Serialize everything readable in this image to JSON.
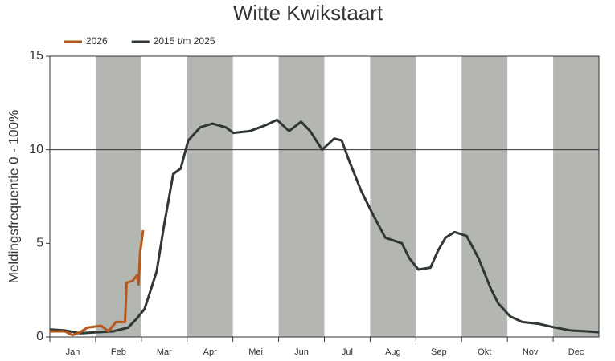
{
  "chart_data": {
    "type": "line",
    "title": "Witte Kwikstaart",
    "y_label": "Meldingsfrequentie 0 - 100%",
    "categories": [
      "Jan",
      "Feb",
      "Mar",
      "Apr",
      "Mei",
      "Jun",
      "Jul",
      "Aug",
      "Sep",
      "Okt",
      "Nov",
      "Dec"
    ],
    "band_color": "#b4b6b1",
    "xlim": [
      0,
      365
    ],
    "ylim": [
      0,
      15
    ],
    "yticks": [
      0,
      5,
      10,
      15
    ],
    "grid_lines_at": [
      10
    ],
    "series": [
      {
        "name": "2026",
        "color": "#b5581c",
        "x": [
          0,
          10,
          15,
          20,
          25,
          34,
          39,
          44,
          50,
          51,
          55,
          58,
          59,
          60,
          62
        ],
        "values": [
          0.3,
          0.3,
          0.1,
          0.25,
          0.5,
          0.6,
          0.3,
          0.8,
          0.8,
          2.9,
          3.0,
          3.3,
          2.8,
          4.5,
          5.7
        ]
      },
      {
        "name": "2015 t/m 2025",
        "color": "#2f3833",
        "x": [
          0,
          10,
          20,
          31,
          42,
          52,
          58,
          63,
          71,
          76,
          82,
          87,
          92,
          100,
          108,
          117,
          122,
          133,
          143,
          151,
          159,
          167,
          173,
          181,
          189,
          194,
          199,
          207,
          215,
          223,
          234,
          239,
          245,
          253,
          258,
          263,
          269,
          277,
          285,
          293,
          298,
          306,
          314,
          325,
          336,
          346,
          357,
          365
        ],
        "values": [
          0.4,
          0.35,
          0.2,
          0.25,
          0.3,
          0.5,
          1.0,
          1.5,
          3.5,
          6.0,
          8.7,
          9.0,
          10.5,
          11.2,
          11.4,
          11.2,
          10.9,
          11.0,
          11.3,
          11.6,
          11.0,
          11.5,
          11.0,
          10.0,
          10.6,
          10.5,
          9.4,
          7.8,
          6.5,
          5.3,
          5.0,
          4.2,
          3.6,
          3.7,
          4.6,
          5.3,
          5.6,
          5.4,
          4.2,
          2.6,
          1.8,
          1.1,
          0.8,
          0.7,
          0.5,
          0.35,
          0.3,
          0.25
        ]
      }
    ]
  }
}
